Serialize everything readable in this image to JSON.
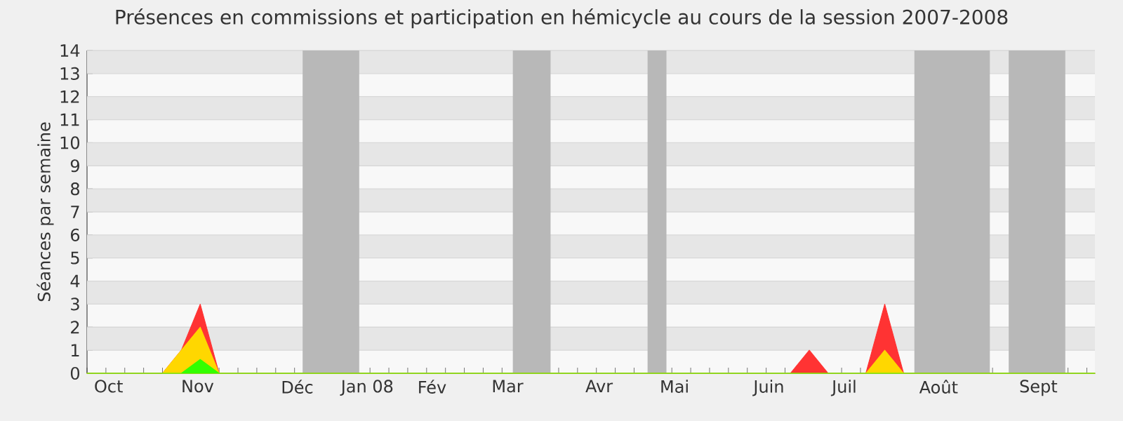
{
  "chart_data": {
    "type": "area",
    "title": "Présences en commissions et participation en hémicycle au cours de la session 2007-2008",
    "ylabel": "Séances par semaine",
    "series": [
      {
        "color": "#ff3333",
        "x": [
          "2007-10-01",
          "2007-10-29",
          "2007-11-05",
          "2007-11-12",
          "2007-11-19",
          "2008-06-18",
          "2008-06-25",
          "2008-07-02",
          "2008-07-16",
          "2008-07-23",
          "2008-07-30",
          "2008-10-09"
        ],
        "values": [
          0,
          0,
          1,
          3,
          0,
          0,
          1,
          0,
          0,
          3,
          0,
          0
        ]
      },
      {
        "color": "#ffd700",
        "x": [
          "2007-10-01",
          "2007-10-29",
          "2007-11-05",
          "2007-11-12",
          "2007-11-19",
          "2008-06-18",
          "2008-06-25",
          "2008-07-02",
          "2008-07-16",
          "2008-07-23",
          "2008-07-30",
          "2008-10-09"
        ],
        "values": [
          0,
          0,
          1,
          2,
          0,
          0,
          0,
          0,
          0,
          1,
          0,
          0
        ]
      },
      {
        "color": "#33ff00",
        "x": [
          "2007-10-01",
          "2007-10-29",
          "2007-11-05",
          "2007-11-12",
          "2007-11-19",
          "2008-06-18",
          "2008-06-25",
          "2008-07-02",
          "2008-07-16",
          "2008-07-23",
          "2008-07-30",
          "2008-10-09"
        ],
        "values": [
          0,
          0,
          0,
          0.6,
          0,
          0,
          0,
          0,
          0,
          0,
          0,
          0
        ]
      }
    ],
    "xlim": [
      "2007-10-01",
      "2008-10-09"
    ],
    "xticks": [
      {
        "value": "2007-10-09",
        "label": "Oct"
      },
      {
        "value": "2007-11-11",
        "label": "Nov"
      },
      {
        "value": "2007-12-18",
        "label": "Déc"
      },
      {
        "value": "2008-01-13",
        "label": "Jan 08"
      },
      {
        "value": "2008-02-06",
        "label": "Fév"
      },
      {
        "value": "2008-03-05",
        "label": "Mar"
      },
      {
        "value": "2008-04-08",
        "label": "Avr"
      },
      {
        "value": "2008-05-06",
        "label": "Mai"
      },
      {
        "value": "2008-06-10",
        "label": "Juin"
      },
      {
        "value": "2008-07-08",
        "label": "Juil"
      },
      {
        "value": "2008-08-12",
        "label": "Août"
      },
      {
        "value": "2008-09-18",
        "label": "Sept"
      },
      {
        "value": "2007-10-01",
        "label": null
      },
      {
        "value": "2007-10-08",
        "label": null
      },
      {
        "value": "2007-10-15",
        "label": null
      },
      {
        "value": "2007-10-22",
        "label": null
      },
      {
        "value": "2007-10-29",
        "label": null
      },
      {
        "value": "2007-11-05",
        "label": null
      },
      {
        "value": "2007-11-12",
        "label": null
      },
      {
        "value": "2007-11-19",
        "label": null
      },
      {
        "value": "2007-11-26",
        "label": null
      },
      {
        "value": "2007-12-03",
        "label": null
      },
      {
        "value": "2007-12-10",
        "label": null
      },
      {
        "value": "2007-12-17",
        "label": null
      },
      {
        "value": "2007-12-24",
        "label": null
      },
      {
        "value": "2007-12-31",
        "label": null
      },
      {
        "value": "2008-01-07",
        "label": null
      },
      {
        "value": "2008-01-14",
        "label": null
      },
      {
        "value": "2008-01-21",
        "label": null
      },
      {
        "value": "2008-01-28",
        "label": null
      },
      {
        "value": "2008-02-04",
        "label": null
      },
      {
        "value": "2008-02-11",
        "label": null
      },
      {
        "value": "2008-02-18",
        "label": null
      },
      {
        "value": "2008-02-25",
        "label": null
      },
      {
        "value": "2008-03-03",
        "label": null
      },
      {
        "value": "2008-03-10",
        "label": null
      },
      {
        "value": "2008-03-17",
        "label": null
      },
      {
        "value": "2008-03-24",
        "label": null
      },
      {
        "value": "2008-03-31",
        "label": null
      },
      {
        "value": "2008-04-07",
        "label": null
      },
      {
        "value": "2008-04-14",
        "label": null
      },
      {
        "value": "2008-04-21",
        "label": null
      },
      {
        "value": "2008-04-28",
        "label": null
      },
      {
        "value": "2008-05-05",
        "label": null
      },
      {
        "value": "2008-05-12",
        "label": null
      },
      {
        "value": "2008-05-19",
        "label": null
      },
      {
        "value": "2008-05-26",
        "label": null
      },
      {
        "value": "2008-06-02",
        "label": null
      },
      {
        "value": "2008-06-09",
        "label": null
      },
      {
        "value": "2008-06-16",
        "label": null
      },
      {
        "value": "2008-06-23",
        "label": null
      },
      {
        "value": "2008-06-30",
        "label": null
      },
      {
        "value": "2008-07-07",
        "label": null
      },
      {
        "value": "2008-07-14",
        "label": null
      },
      {
        "value": "2008-07-21",
        "label": null
      },
      {
        "value": "2008-07-28",
        "label": null
      },
      {
        "value": "2008-08-04",
        "label": null
      },
      {
        "value": "2008-08-11",
        "label": null
      },
      {
        "value": "2008-08-18",
        "label": null
      },
      {
        "value": "2008-08-25",
        "label": null
      },
      {
        "value": "2008-09-01",
        "label": null
      },
      {
        "value": "2008-09-08",
        "label": null
      },
      {
        "value": "2008-09-15",
        "label": null
      },
      {
        "value": "2008-09-22",
        "label": null
      },
      {
        "value": "2008-09-29",
        "label": null
      },
      {
        "value": "2008-10-06",
        "label": null
      }
    ],
    "ylim": [
      0,
      14
    ],
    "yticks": [
      0,
      1,
      2,
      3,
      4,
      5,
      6,
      7,
      8,
      9,
      10,
      11,
      12,
      13,
      14
    ],
    "bands": [
      {
        "axis": "x",
        "from": "2007-12-20",
        "to": "2008-01-10",
        "color": "#b8b8b8"
      },
      {
        "axis": "x",
        "from": "2008-03-07",
        "to": "2008-03-21",
        "color": "#b8b8b8"
      },
      {
        "axis": "x",
        "from": "2008-04-26",
        "to": "2008-05-03",
        "color": "#b8b8b8"
      },
      {
        "axis": "x",
        "from": "2008-08-03",
        "to": "2008-08-31",
        "color": "#b8b8b8"
      },
      {
        "axis": "x",
        "from": "2008-09-07",
        "to": "2008-09-28",
        "color": "#b8b8b8"
      }
    ],
    "grid": "y"
  }
}
